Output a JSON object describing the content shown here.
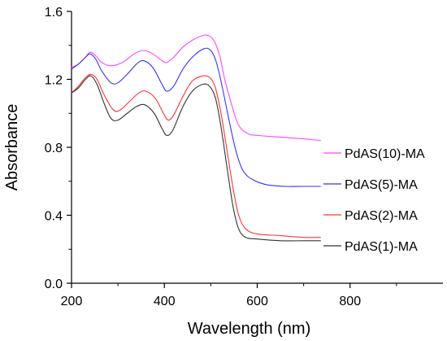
{
  "chart_data": {
    "type": "line",
    "xlabel": "Wavelength (nm)",
    "ylabel": "Absorbance",
    "xlim": [
      200,
      1000
    ],
    "ylim": [
      0,
      1.6
    ],
    "xticks": [
      200,
      400,
      600,
      800
    ],
    "xtick_labels": [
      "200",
      "400",
      "600",
      "800"
    ],
    "yticks": [
      0.0,
      0.4,
      0.8,
      1.2,
      1.6
    ],
    "ytick_labels": [
      "0.0",
      "0.4",
      "0.8",
      "1.2",
      "1.6"
    ],
    "grid": false,
    "legend_position": "bottom-right",
    "series": [
      {
        "name": "PdAS(10)-MA",
        "color": "#ff44ff",
        "points": [
          [
            200,
            1.27
          ],
          [
            215,
            1.29
          ],
          [
            230,
            1.33
          ],
          [
            240,
            1.36
          ],
          [
            252,
            1.34
          ],
          [
            265,
            1.3
          ],
          [
            285,
            1.28
          ],
          [
            310,
            1.3
          ],
          [
            335,
            1.35
          ],
          [
            355,
            1.37
          ],
          [
            375,
            1.35
          ],
          [
            395,
            1.31
          ],
          [
            405,
            1.3
          ],
          [
            420,
            1.33
          ],
          [
            440,
            1.39
          ],
          [
            460,
            1.43
          ],
          [
            485,
            1.46
          ],
          [
            500,
            1.45
          ],
          [
            510,
            1.41
          ],
          [
            520,
            1.33
          ],
          [
            530,
            1.2
          ],
          [
            545,
            1.05
          ],
          [
            560,
            0.93
          ],
          [
            580,
            0.88
          ],
          [
            600,
            0.87
          ],
          [
            650,
            0.86
          ],
          [
            700,
            0.85
          ],
          [
            737,
            0.84
          ]
        ]
      },
      {
        "name": "PdAS(5)-MA",
        "color": "#3333ff",
        "points": [
          [
            200,
            1.26
          ],
          [
            215,
            1.29
          ],
          [
            230,
            1.33
          ],
          [
            240,
            1.35
          ],
          [
            252,
            1.32
          ],
          [
            265,
            1.25
          ],
          [
            285,
            1.18
          ],
          [
            300,
            1.18
          ],
          [
            320,
            1.23
          ],
          [
            340,
            1.29
          ],
          [
            355,
            1.31
          ],
          [
            375,
            1.27
          ],
          [
            395,
            1.17
          ],
          [
            405,
            1.13
          ],
          [
            420,
            1.16
          ],
          [
            440,
            1.26
          ],
          [
            460,
            1.33
          ],
          [
            485,
            1.38
          ],
          [
            500,
            1.37
          ],
          [
            512,
            1.3
          ],
          [
            525,
            1.15
          ],
          [
            540,
            0.95
          ],
          [
            555,
            0.77
          ],
          [
            570,
            0.66
          ],
          [
            590,
            0.61
          ],
          [
            620,
            0.58
          ],
          [
            660,
            0.57
          ],
          [
            700,
            0.57
          ],
          [
            737,
            0.57
          ]
        ]
      },
      {
        "name": "PdAS(2)-MA",
        "color": "#ff3333",
        "points": [
          [
            200,
            1.12
          ],
          [
            215,
            1.16
          ],
          [
            230,
            1.21
          ],
          [
            242,
            1.23
          ],
          [
            255,
            1.2
          ],
          [
            270,
            1.11
          ],
          [
            290,
            1.02
          ],
          [
            305,
            1.02
          ],
          [
            325,
            1.07
          ],
          [
            345,
            1.12
          ],
          [
            360,
            1.13
          ],
          [
            380,
            1.09
          ],
          [
            398,
            1.0
          ],
          [
            408,
            0.96
          ],
          [
            420,
            0.99
          ],
          [
            440,
            1.1
          ],
          [
            460,
            1.19
          ],
          [
            483,
            1.22
          ],
          [
            498,
            1.21
          ],
          [
            510,
            1.15
          ],
          [
            522,
            1.0
          ],
          [
            535,
            0.78
          ],
          [
            548,
            0.56
          ],
          [
            560,
            0.4
          ],
          [
            575,
            0.32
          ],
          [
            600,
            0.29
          ],
          [
            650,
            0.28
          ],
          [
            700,
            0.27
          ],
          [
            737,
            0.27
          ]
        ]
      },
      {
        "name": "PdAS(1)-MA",
        "color": "#333333",
        "points": [
          [
            200,
            1.12
          ],
          [
            215,
            1.15
          ],
          [
            230,
            1.2
          ],
          [
            242,
            1.22
          ],
          [
            255,
            1.17
          ],
          [
            270,
            1.06
          ],
          [
            285,
            0.97
          ],
          [
            300,
            0.96
          ],
          [
            320,
            1.0
          ],
          [
            340,
            1.04
          ],
          [
            358,
            1.05
          ],
          [
            378,
            1.0
          ],
          [
            395,
            0.91
          ],
          [
            405,
            0.87
          ],
          [
            418,
            0.9
          ],
          [
            440,
            1.04
          ],
          [
            460,
            1.13
          ],
          [
            482,
            1.17
          ],
          [
            497,
            1.16
          ],
          [
            510,
            1.09
          ],
          [
            522,
            0.92
          ],
          [
            535,
            0.68
          ],
          [
            548,
            0.45
          ],
          [
            560,
            0.32
          ],
          [
            575,
            0.27
          ],
          [
            600,
            0.26
          ],
          [
            650,
            0.25
          ],
          [
            700,
            0.25
          ],
          [
            737,
            0.25
          ]
        ]
      }
    ]
  }
}
